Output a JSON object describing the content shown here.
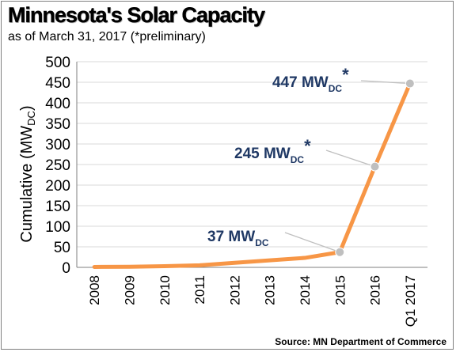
{
  "chart_data": {
    "type": "line",
    "title": "Minnesota's Solar Capacity",
    "subtitle": "as of March 31, 2017 (*preliminary)",
    "ylabel_main": "Cumulative (MW",
    "ylabel_sub": "DC",
    "ylabel_close": ")",
    "xlabel": "",
    "categories": [
      "2008",
      "2009",
      "2010",
      "2011",
      "2012",
      "2013",
      "2014",
      "2015",
      "2016",
      "Q1 2017"
    ],
    "series": [
      {
        "values": [
          1,
          1.5,
          3,
          5,
          11,
          17,
          23,
          37,
          245,
          447
        ]
      }
    ],
    "ylim": [
      0,
      500
    ],
    "yticks": [
      "0",
      "50",
      "100",
      "150",
      "200",
      "250",
      "300",
      "350",
      "400",
      "450",
      "500"
    ],
    "grid": true,
    "line_color": "#f79646",
    "marker_color": "#bfbfbf",
    "annotation_color": "#1f3864",
    "annotations": [
      {
        "main": "37 MW",
        "sub": "DC",
        "star": "",
        "index": 7
      },
      {
        "main": "245 MW",
        "sub": "DC",
        "star": "*",
        "index": 8
      },
      {
        "main": "447 MW",
        "sub": "DC",
        "star": "*",
        "index": 9
      }
    ],
    "source": "Source: MN Department of Commerce"
  }
}
